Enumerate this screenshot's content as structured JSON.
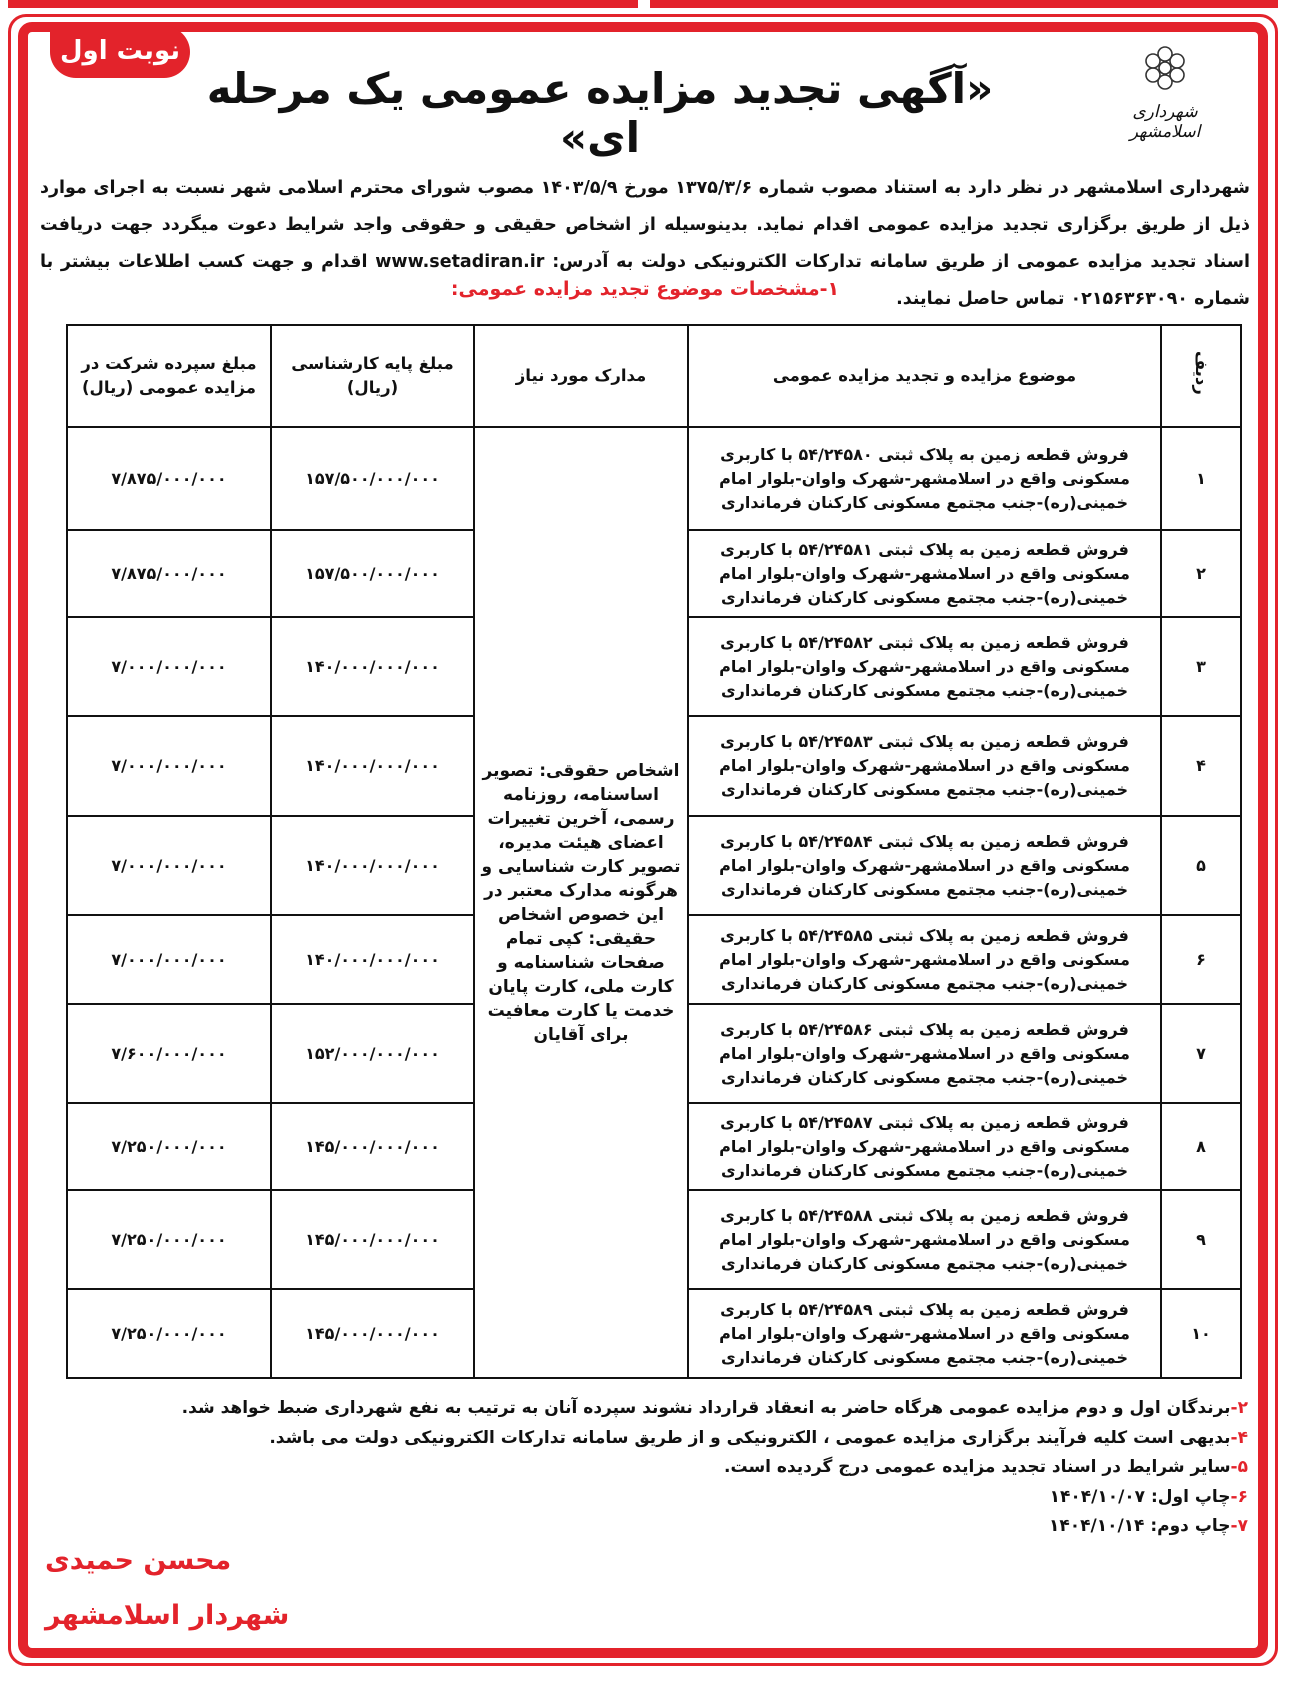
{
  "badge": "نوبت اول",
  "title": "«آگهی تجدید مزایده عمومی یک مرحله ای»",
  "logo": {
    "text": "شهرداری اسلامشهر",
    "icon": "flower-emblem-icon",
    "color": "#e3232b"
  },
  "intro": "شهرداری اسلامشهر در نظر دارد به استناد مصوب شماره ۱۳۷۵/۳/۶ مورخ ۱۴۰۳/۵/۹ مصوب شورای محترم اسلامی شهر نسبت به اجرای موارد ذیل از طریق برگزاری تجدید مزایده عمومی اقدام نماید. بدینوسیله از اشخاص حقیقی و حقوقی واجد شرایط دعوت میگردد جهت دریافت اسناد تجدید مزایده عمومی از طریق سامانه تدارکات الکترونیکی دولت به آدرس: www.setadiran.ir اقدام و جهت کسب اطلاعات بیشتر با شماره ۰۲۱۵۶۳۶۳۰۹۰ تماس حاصل نمایند.",
  "section_heading": "۱-مشخصات موضوع تجدید مزایده عمومی:",
  "table": {
    "headers": [
      "ردیف",
      "موضوع مزایده و تجدید مزایده عمومی",
      "مدارک مورد نیاز",
      "مبلغ پایه کارشناسی (ریال)",
      "مبلغ سپرده شرکت در مزایده عمومی (ریال)"
    ],
    "documents": "اشخاص حقوقی: تصویر اساسنامه، روزنامه رسمی، آخرین تغییرات اعضای هیئت مدیره، تصویر کارت شناسایی و هرگونه مدارک معتبر در این خصوص اشخاص حقیقی: کپی تمام صفحات شناسنامه و کارت ملی، کارت پایان خدمت یا کارت معافیت برای آقایان",
    "rows": [
      {
        "no": "۱",
        "subject": "فروش قطعه زمین به پلاک ثبتی ۵۴/۲۴۵۸۰ با کاربری مسکونی واقع در اسلامشهر-شهرک واوان-بلوار امام خمینی(ره)-جنب مجتمع مسکونی کارکنان فرمانداری",
        "base": "۱۵۷/۵۰۰/۰۰۰/۰۰۰",
        "deposit": "۷/۸۷۵/۰۰۰/۰۰۰"
      },
      {
        "no": "۲",
        "subject": "فروش قطعه زمین به پلاک ثبتی ۵۴/۲۴۵۸۱ با کاربری مسکونی واقع در اسلامشهر-شهرک واوان-بلوار امام خمینی(ره)-جنب مجتمع مسکونی کارکنان فرمانداری",
        "base": "۱۵۷/۵۰۰/۰۰۰/۰۰۰",
        "deposit": "۷/۸۷۵/۰۰۰/۰۰۰"
      },
      {
        "no": "۳",
        "subject": "فروش قطعه زمین به پلاک ثبتی ۵۴/۲۴۵۸۲ با کاربری مسکونی واقع در اسلامشهر-شهرک واوان-بلوار امام خمینی(ره)-جنب مجتمع مسکونی کارکنان فرمانداری",
        "base": "۱۴۰/۰۰۰/۰۰۰/۰۰۰",
        "deposit": "۷/۰۰۰/۰۰۰/۰۰۰"
      },
      {
        "no": "۴",
        "subject": "فروش قطعه زمین به پلاک ثبتی ۵۴/۲۴۵۸۳ با کاربری مسکونی واقع در اسلامشهر-شهرک واوان-بلوار امام خمینی(ره)-جنب مجتمع مسکونی کارکنان فرمانداری",
        "base": "۱۴۰/۰۰۰/۰۰۰/۰۰۰",
        "deposit": "۷/۰۰۰/۰۰۰/۰۰۰"
      },
      {
        "no": "۵",
        "subject": "فروش قطعه زمین به پلاک ثبتی ۵۴/۲۴۵۸۴ با کاربری مسکونی واقع در اسلامشهر-شهرک واوان-بلوار امام خمینی(ره)-جنب مجتمع مسکونی کارکنان فرمانداری",
        "base": "۱۴۰/۰۰۰/۰۰۰/۰۰۰",
        "deposit": "۷/۰۰۰/۰۰۰/۰۰۰"
      },
      {
        "no": "۶",
        "subject": "فروش قطعه زمین به پلاک ثبتی ۵۴/۲۴۵۸۵ با کاربری مسکونی واقع در اسلامشهر-شهرک واوان-بلوار امام خمینی(ره)-جنب مجتمع مسکونی کارکنان فرمانداری",
        "base": "۱۴۰/۰۰۰/۰۰۰/۰۰۰",
        "deposit": "۷/۰۰۰/۰۰۰/۰۰۰"
      },
      {
        "no": "۷",
        "subject": "فروش قطعه زمین به پلاک ثبتی ۵۴/۲۴۵۸۶ با کاربری مسکونی واقع در اسلامشهر-شهرک واوان-بلوار امام خمینی(ره)-جنب مجتمع مسکونی کارکنان فرمانداری",
        "base": "۱۵۲/۰۰۰/۰۰۰/۰۰۰",
        "deposit": "۷/۶۰۰/۰۰۰/۰۰۰"
      },
      {
        "no": "۸",
        "subject": "فروش قطعه زمین به پلاک ثبتی ۵۴/۲۴۵۸۷ با کاربری مسکونی واقع در اسلامشهر-شهرک واوان-بلوار امام خمینی(ره)-جنب مجتمع مسکونی کارکنان فرمانداری",
        "base": "۱۴۵/۰۰۰/۰۰۰/۰۰۰",
        "deposit": "۷/۲۵۰/۰۰۰/۰۰۰"
      },
      {
        "no": "۹",
        "subject": "فروش قطعه زمین به پلاک ثبتی ۵۴/۲۴۵۸۸ با کاربری مسکونی واقع در اسلامشهر-شهرک واوان-بلوار امام خمینی(ره)-جنب مجتمع مسکونی کارکنان فرمانداری",
        "base": "۱۴۵/۰۰۰/۰۰۰/۰۰۰",
        "deposit": "۷/۲۵۰/۰۰۰/۰۰۰"
      },
      {
        "no": "۱۰",
        "subject": "فروش قطعه زمین به پلاک ثبتی ۵۴/۲۴۵۸۹ با کاربری مسکونی واقع در اسلامشهر-شهرک واوان-بلوار امام خمینی(ره)-جنب مجتمع مسکونی کارکنان فرمانداری",
        "base": "۱۴۵/۰۰۰/۰۰۰/۰۰۰",
        "deposit": "۷/۲۵۰/۰۰۰/۰۰۰"
      }
    ]
  },
  "notes": [
    {
      "num": "۲-",
      "text": "برندگان اول و دوم مزایده عمومی هرگاه حاضر به انعقاد قرارداد نشوند سپرده آنان به ترتیب به نفع شهرداری ضبط خواهد شد."
    },
    {
      "num": "۴-",
      "text": "بدیهی است کلیه فرآیند برگزاری مزایده عمومی ، الکترونیکی و از طریق سامانه تدارکات الکترونیکی دولت می باشد."
    },
    {
      "num": "۵-",
      "text": "سایر شرایط در اسناد تجدید مزایده عمومی درج گردیده است."
    },
    {
      "num": "۶-",
      "text": "چاپ اول: ۱۴۰۴/۱۰/۰۷"
    },
    {
      "num": "۷-",
      "text": "چاپ دوم: ۱۴۰۴/۱۰/۱۴"
    }
  ],
  "signature": {
    "name": "محسن حمیدی",
    "role": "شهردار اسلامشهر"
  },
  "colors": {
    "accent": "#e3232b",
    "text": "#111111"
  }
}
